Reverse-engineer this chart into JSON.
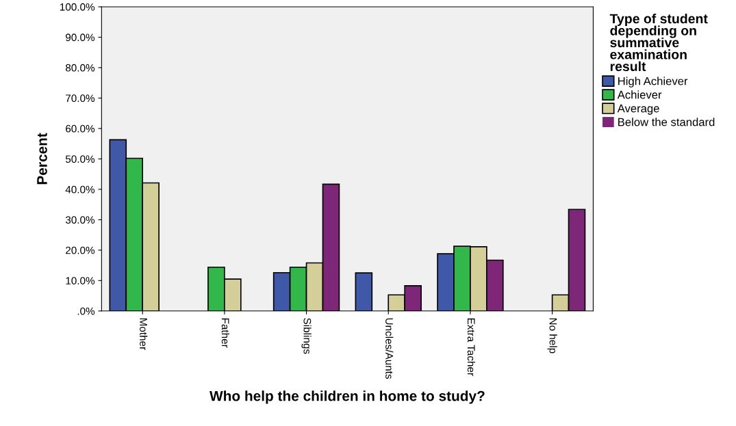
{
  "chart_data": {
    "type": "bar",
    "xlabel": "Who help the children in home to study?",
    "ylabel": "Percent",
    "legend_title": "Type of student\ndepending on\nsummative\nexamination\nresult",
    "legend": "right",
    "grid": false,
    "categories": [
      "Mother",
      "Father",
      "Siblings",
      "Uncles/Aunts",
      "Extra Tacher",
      "No help"
    ],
    "ylim": [
      0,
      100
    ],
    "yticks": [
      {
        "value": 0,
        "label": ".0%"
      },
      {
        "value": 10,
        "label": "10.0%"
      },
      {
        "value": 20,
        "label": "20.0%"
      },
      {
        "value": 30,
        "label": "30.0%"
      },
      {
        "value": 40,
        "label": "40.0%"
      },
      {
        "value": 50,
        "label": "50.0%"
      },
      {
        "value": 60,
        "label": "60.0%"
      },
      {
        "value": 70,
        "label": "70.0%"
      },
      {
        "value": 80,
        "label": "80.0%"
      },
      {
        "value": 90,
        "label": "90.0%"
      },
      {
        "value": 100,
        "label": "100.0%"
      }
    ],
    "series": [
      {
        "name": "High Achiever",
        "color": "#3f58a8",
        "values": [
          56.3,
          0,
          12.6,
          12.5,
          18.8,
          0
        ]
      },
      {
        "name": "Achiever",
        "color": "#32b84a",
        "values": [
          50.2,
          14.4,
          14.4,
          0,
          21.3,
          0
        ]
      },
      {
        "name": "Average",
        "color": "#d4cf98",
        "values": [
          42.1,
          10.5,
          15.8,
          5.3,
          21.1,
          5.3
        ]
      },
      {
        "name": "Below the standard",
        "color": "#7e2677",
        "values": [
          0,
          0,
          41.7,
          8.3,
          16.7,
          33.4
        ]
      }
    ]
  }
}
